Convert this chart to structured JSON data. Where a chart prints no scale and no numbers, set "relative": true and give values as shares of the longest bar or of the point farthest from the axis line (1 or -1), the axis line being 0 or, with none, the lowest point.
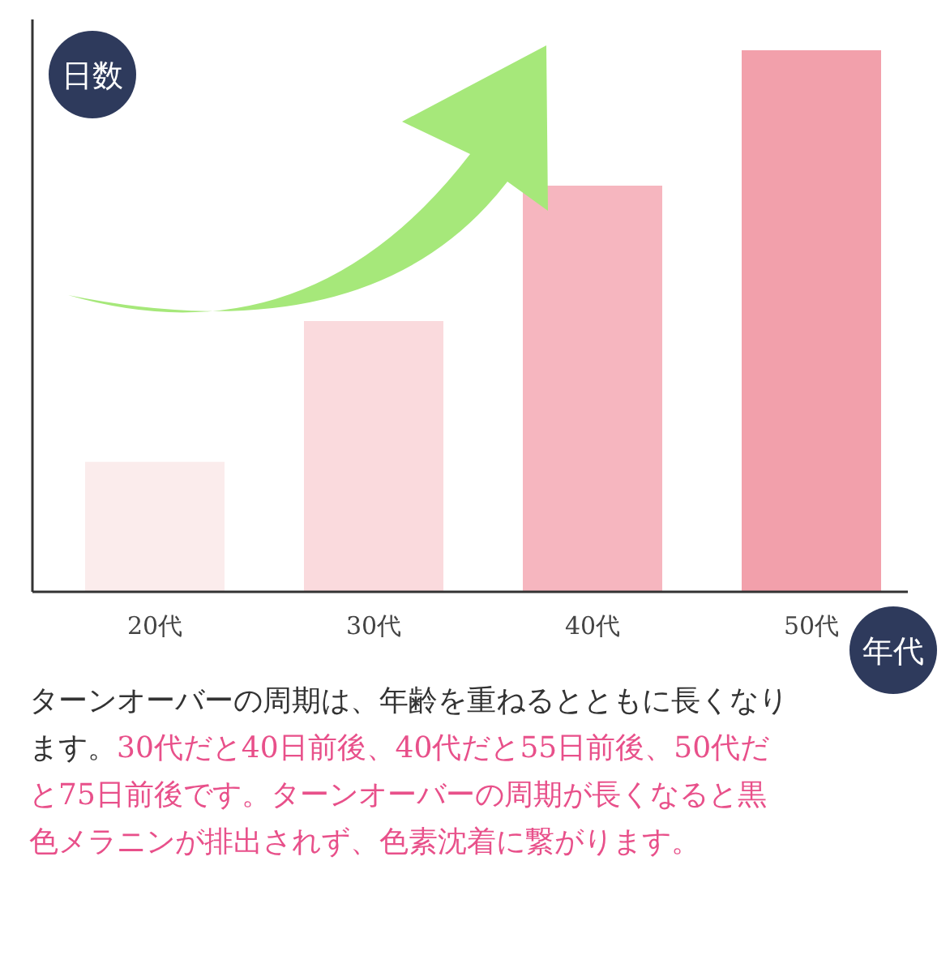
{
  "chart_data": {
    "type": "bar",
    "relative": true,
    "ylabel": "日数",
    "xlabel": "年代",
    "categories": [
      "20代",
      "30代",
      "40代",
      "50代"
    ],
    "values": [
      0.24,
      0.5,
      0.75,
      1
    ],
    "colors": [
      "#fbecec",
      "#fadadd",
      "#f6b6bf",
      "#f2a0ab"
    ],
    "annotations": [
      "ターンオーバーの周期は、年齢を重ねるとともに長くなります。",
      "30代だと40日前後、40代だと55日前後、50代だと75日前後です。",
      "ターンオーバーの周期が長くなると黒色メラニンが排出されず、色素沈着に繋がります。"
    ]
  }
}
